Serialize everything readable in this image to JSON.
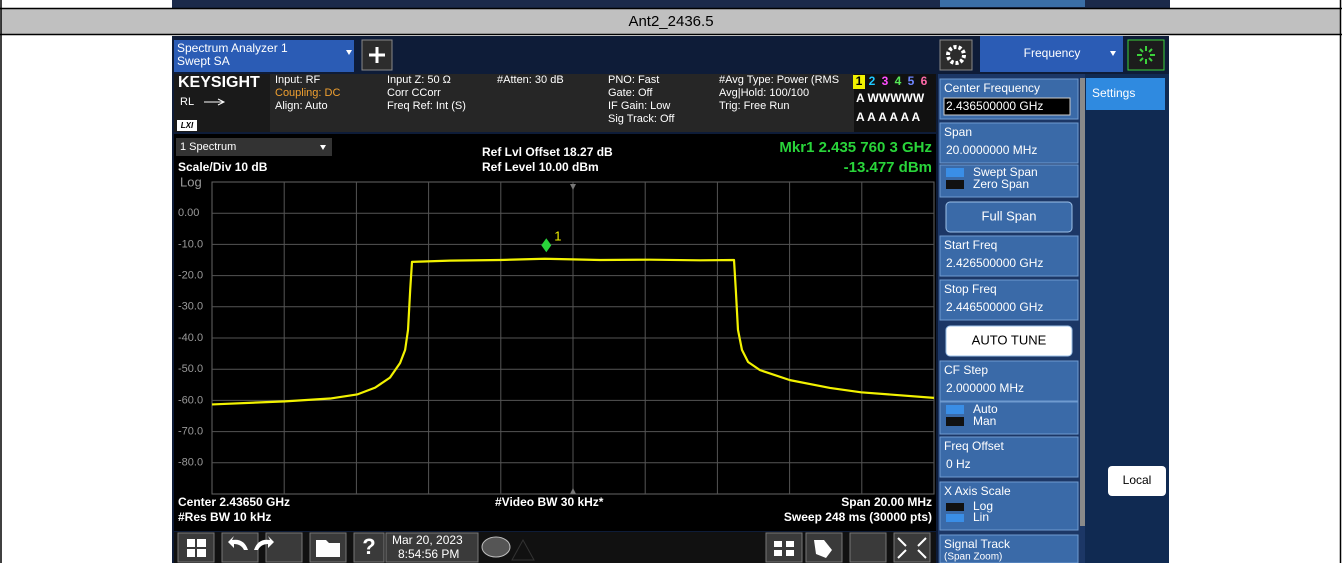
{
  "title": "Ant2_2436.5",
  "app": {
    "name": "Spectrum Analyzer 1",
    "mode": "Swept SA",
    "menu": "Frequency"
  },
  "info": {
    "brand": "KEYSIGHT",
    "rl": "RL",
    "lxi": "LXI",
    "input": "Input: RF",
    "coupling": "Coupling: DC",
    "align": "Align: Auto",
    "input_z": "Input Z: 50 Ω",
    "corr": "Corr CCorr",
    "freq_ref": "Freq Ref: Int (S)",
    "atten": "#Atten: 30 dB",
    "pno": "PNO: Fast",
    "gate": "Gate: Off",
    "if_gain": "IF Gain: Low",
    "sig_track": "Sig Track: Off",
    "avg_type": "#Avg Type: Power (RMS",
    "avg_hold": "Avg|Hold: 100/100",
    "trig": "Trig: Free Run",
    "traces": [
      "1",
      "2",
      "3",
      "4",
      "5",
      "6"
    ],
    "trace_types": "A WWWWW",
    "trace_detectors": "A A A A A A"
  },
  "chart_data": {
    "type": "line",
    "window": "1 Spectrum",
    "scale": "Scale/Div 10 dB",
    "scale_type": "Log",
    "ref_offset": "Ref Lvl Offset 18.27 dB",
    "ref_level": "Ref Level 10.00 dBm",
    "marker": {
      "name": "1",
      "readout": "Mkr1  2.435 760 3 GHz",
      "value_label": "-13.477 dBm",
      "x": 2.4357603,
      "value": -13.477
    },
    "x": [
      2.4265,
      2.42852,
      2.42977,
      2.43052,
      2.43102,
      2.43143,
      2.43171,
      2.43185,
      2.43193,
      2.43199,
      2.43204,
      2.43309,
      2.43448,
      2.43572,
      2.43725,
      2.43863,
      2.44002,
      2.44096,
      2.44101,
      2.44107,
      2.44118,
      2.44135,
      2.44168,
      2.44251,
      2.44362,
      2.44448,
      2.4465
    ],
    "values": [
      -61.3,
      -60.3,
      -59.4,
      -58.1,
      -55.9,
      -52.7,
      -48.0,
      -43.8,
      -37.4,
      -24.6,
      -15.6,
      -15.2,
      -15.0,
      -14.6,
      -15.0,
      -14.9,
      -15.1,
      -15.0,
      -24.6,
      -37.4,
      -43.8,
      -47.7,
      -50.3,
      -53.5,
      -56.0,
      -57.4,
      -59.2
    ],
    "color": "#f2f200",
    "xlim": [
      2.4265,
      2.4465
    ],
    "ylim": [
      -90,
      10
    ],
    "yticks": [
      {
        "value": 0,
        "label": "0.00"
      },
      {
        "value": -10,
        "label": "-10.0"
      },
      {
        "value": -20,
        "label": "-20.0"
      },
      {
        "value": -30,
        "label": "-30.0"
      },
      {
        "value": -40,
        "label": "-40.0"
      },
      {
        "value": -50,
        "label": "-50.0"
      },
      {
        "value": -60,
        "label": "-60.0"
      },
      {
        "value": -70,
        "label": "-70.0"
      },
      {
        "value": -80,
        "label": "-80.0"
      }
    ],
    "grid": true,
    "footer": {
      "center": "Center 2.43650 GHz",
      "res_bw": "#Res BW 10 kHz",
      "video_bw": "#Video BW 30 kHz*",
      "span": "Span 20.00 MHz",
      "sweep": "Sweep 248 ms (30000 pts)"
    }
  },
  "panel": {
    "tab": "Settings",
    "local": "Local",
    "center_freq": {
      "label": "Center Frequency",
      "value": "2.436500000 GHz"
    },
    "span": {
      "label": "Span",
      "value": "20.0000000 MHz"
    },
    "span_mode": [
      "Swept Span",
      "Zero Span"
    ],
    "full_span": "Full Span",
    "start_freq": {
      "label": "Start Freq",
      "value": "2.426500000 GHz"
    },
    "stop_freq": {
      "label": "Stop Freq",
      "value": "2.446500000 GHz"
    },
    "auto_tune": "AUTO TUNE",
    "cf_step": {
      "label": "CF Step",
      "value": "2.000000 MHz"
    },
    "cf_mode": [
      "Auto",
      "Man"
    ],
    "freq_offset": {
      "label": "Freq Offset",
      "value": "0 Hz"
    },
    "x_scale": {
      "label": "X Axis Scale",
      "options": [
        "Log",
        "Lin"
      ]
    },
    "signal_track": {
      "label": "Signal Track",
      "sub": "(Span Zoom)"
    }
  },
  "taskbar": {
    "date": "Mar 20, 2023",
    "time": "8:54:56 PM"
  }
}
